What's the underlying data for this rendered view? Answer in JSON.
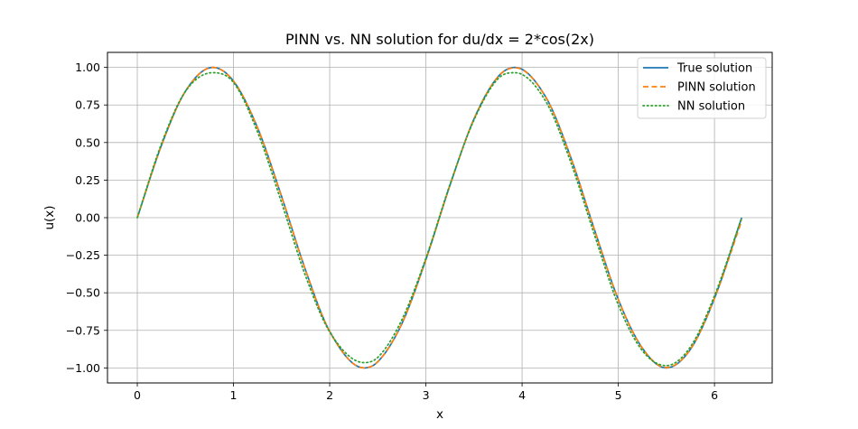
{
  "chart_data": {
    "type": "line",
    "title": "PINN vs. NN solution for du/dx = 2*cos(2x)",
    "xlabel": "x",
    "ylabel": "u(x)",
    "xlim": [
      -0.31,
      6.6
    ],
    "ylim": [
      -1.1,
      1.1
    ],
    "xticks": [
      0,
      1,
      2,
      3,
      4,
      5,
      6
    ],
    "xtick_labels": [
      "0",
      "1",
      "2",
      "3",
      "4",
      "5",
      "6"
    ],
    "yticks": [
      -1.0,
      -0.75,
      -0.5,
      -0.25,
      0.0,
      0.25,
      0.5,
      0.75,
      1.0
    ],
    "ytick_labels": [
      "−1.00",
      "−0.75",
      "−0.50",
      "−0.25",
      "0.00",
      "0.25",
      "0.50",
      "0.75",
      "1.00"
    ],
    "grid": true,
    "legend_position": "top-right",
    "series": [
      {
        "name": "True solution",
        "color": "#1f77b4",
        "style": "solid",
        "x": [
          0.0,
          0.25,
          0.5,
          0.785,
          1.0,
          1.25,
          1.5,
          1.75,
          2.0,
          2.356,
          2.5,
          2.75,
          3.0,
          3.25,
          3.5,
          3.75,
          3.927,
          4.25,
          4.5,
          4.75,
          5.0,
          5.25,
          5.498,
          5.75,
          6.0,
          6.283
        ],
        "y": [
          0.0,
          0.479,
          0.841,
          1.0,
          0.909,
          0.598,
          0.141,
          -0.351,
          -0.757,
          -1.0,
          -0.959,
          -0.706,
          -0.279,
          0.215,
          0.657,
          0.938,
          1.0,
          0.798,
          0.412,
          -0.075,
          -0.544,
          -0.868,
          -1.0,
          -0.876,
          -0.537,
          0.0
        ]
      },
      {
        "name": "PINN solution",
        "color": "#ff7f0e",
        "style": "dashed",
        "x": [
          0.0,
          0.25,
          0.5,
          0.785,
          1.0,
          1.25,
          1.5,
          1.75,
          2.0,
          2.356,
          2.5,
          2.75,
          3.0,
          3.25,
          3.5,
          3.75,
          3.927,
          4.25,
          4.5,
          4.75,
          5.0,
          5.25,
          5.498,
          5.75,
          6.0,
          6.283
        ],
        "y": [
          0.0,
          0.479,
          0.841,
          1.0,
          0.909,
          0.598,
          0.141,
          -0.351,
          -0.757,
          -1.0,
          -0.959,
          -0.706,
          -0.279,
          0.215,
          0.657,
          0.938,
          0.998,
          0.798,
          0.412,
          -0.075,
          -0.544,
          -0.868,
          -0.998,
          -0.876,
          -0.537,
          -0.02
        ]
      },
      {
        "name": "NN solution",
        "color": "#2ca02c",
        "style": "dotted",
        "x": [
          0.0,
          0.25,
          0.5,
          0.785,
          1.0,
          1.25,
          1.5,
          1.75,
          2.0,
          2.356,
          2.5,
          2.75,
          3.0,
          3.25,
          3.5,
          3.75,
          3.927,
          4.25,
          4.5,
          4.75,
          5.0,
          5.25,
          5.498,
          5.75,
          6.0,
          6.283
        ],
        "y": [
          0.0,
          0.49,
          0.84,
          0.965,
          0.9,
          0.57,
          0.1,
          -0.39,
          -0.76,
          -0.965,
          -0.93,
          -0.68,
          -0.27,
          0.22,
          0.65,
          0.925,
          0.965,
          0.77,
          0.38,
          -0.11,
          -0.58,
          -0.885,
          -0.985,
          -0.86,
          -0.52,
          0.0
        ]
      }
    ]
  }
}
